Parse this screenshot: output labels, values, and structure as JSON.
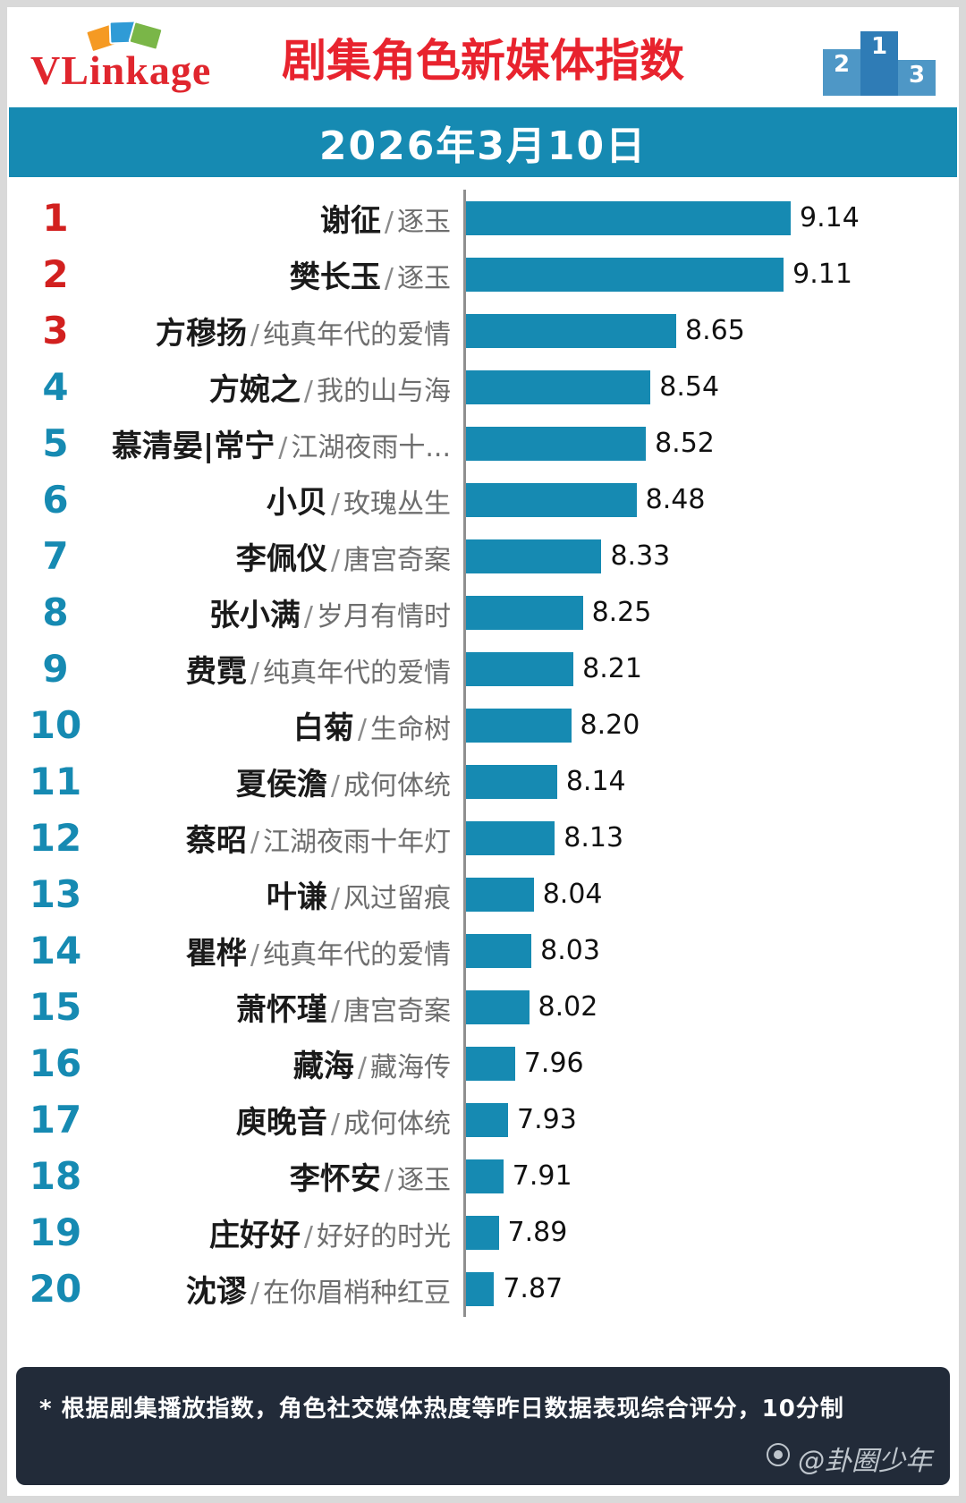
{
  "header": {
    "logo_text": "VLinkage",
    "title": "剧集角色新媒体指数",
    "podium": {
      "first": "1",
      "second": "2",
      "third": "3"
    }
  },
  "date_bar": {
    "date": "2026年3月10日"
  },
  "chart_data": {
    "type": "bar",
    "orientation": "horizontal",
    "title": "剧集角色新媒体指数",
    "xlim": [
      7.75,
      9.2
    ],
    "value_format": "0.00",
    "legend": null,
    "grid": false,
    "rows": [
      {
        "rank": 1,
        "name": "谢征",
        "drama": "逐玉",
        "value": 9.14
      },
      {
        "rank": 2,
        "name": "樊长玉",
        "drama": "逐玉",
        "value": 9.11
      },
      {
        "rank": 3,
        "name": "方穆扬",
        "drama": "纯真年代的爱情",
        "value": 8.65
      },
      {
        "rank": 4,
        "name": "方婉之",
        "drama": "我的山与海",
        "value": 8.54
      },
      {
        "rank": 5,
        "name": "慕清晏|常宁",
        "drama": "江湖夜雨十...",
        "value": 8.52
      },
      {
        "rank": 6,
        "name": "小贝",
        "drama": "玫瑰丛生",
        "value": 8.48
      },
      {
        "rank": 7,
        "name": "李佩仪",
        "drama": "唐宫奇案",
        "value": 8.33
      },
      {
        "rank": 8,
        "name": "张小满",
        "drama": "岁月有情时",
        "value": 8.25
      },
      {
        "rank": 9,
        "name": "费霓",
        "drama": "纯真年代的爱情",
        "value": 8.21
      },
      {
        "rank": 10,
        "name": "白菊",
        "drama": "生命树",
        "value": 8.2
      },
      {
        "rank": 11,
        "name": "夏侯澹",
        "drama": "成何体统",
        "value": 8.14
      },
      {
        "rank": 12,
        "name": "蔡昭",
        "drama": "江湖夜雨十年灯",
        "value": 8.13
      },
      {
        "rank": 13,
        "name": "叶谦",
        "drama": "风过留痕",
        "value": 8.04
      },
      {
        "rank": 14,
        "name": "瞿桦",
        "drama": "纯真年代的爱情",
        "value": 8.03
      },
      {
        "rank": 15,
        "name": "萧怀瑾",
        "drama": "唐宫奇案",
        "value": 8.02
      },
      {
        "rank": 16,
        "name": "藏海",
        "drama": "藏海传",
        "value": 7.96
      },
      {
        "rank": 17,
        "name": "庾晚音",
        "drama": "成何体统",
        "value": 7.93
      },
      {
        "rank": 18,
        "name": "李怀安",
        "drama": "逐玉",
        "value": 7.91
      },
      {
        "rank": 19,
        "name": "庄好好",
        "drama": "好好的时光",
        "value": 7.89
      },
      {
        "rank": 20,
        "name": "沈谬",
        "drama": "在你眉梢种红豆",
        "value": 7.87
      }
    ]
  },
  "footer": {
    "note": "* 根据剧集播放指数，角色社交媒体热度等昨日数据表现综合评分，10分制",
    "watermark": "@卦圈少年"
  },
  "colors": {
    "accent_red": "#e8232e",
    "bar": "#168ab2",
    "rank_top3": "#d2201f",
    "rank_rest": "#168ab2",
    "date_bar_bg": "#168ab2",
    "footer_bg": "#222b39"
  }
}
